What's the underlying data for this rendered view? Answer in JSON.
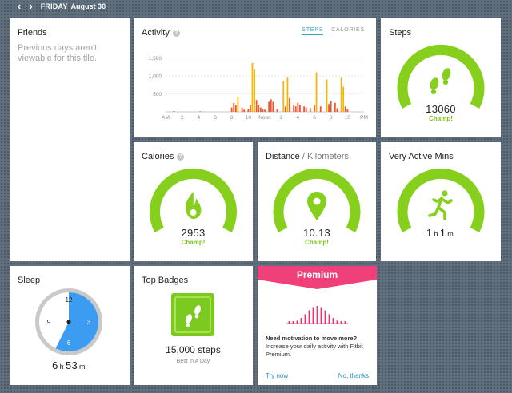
{
  "header": {
    "prev_icon": "chevron-left-icon",
    "next_icon": "chevron-right-icon",
    "day": "FRIDAY",
    "date": "August 30"
  },
  "friends": {
    "title": "Friends",
    "message": "Previous days aren't viewable for this tile."
  },
  "activity": {
    "title": "Activity",
    "tabs": [
      {
        "label": "STEPS",
        "active": true
      },
      {
        "label": "CALORIES",
        "active": false
      }
    ]
  },
  "chart_data": {
    "type": "bar",
    "title": "Activity",
    "y_ticks": [
      "500",
      "1,000",
      "1,500"
    ],
    "ylim": [
      0,
      1800
    ],
    "x_ticks": [
      {
        "label": "AM",
        "hour": 0
      },
      {
        "label": "2",
        "hour": 2
      },
      {
        "label": "4",
        "hour": 4
      },
      {
        "label": "6",
        "hour": 6
      },
      {
        "label": "8",
        "hour": 8
      },
      {
        "label": "10",
        "hour": 10
      },
      {
        "label": "Noon",
        "hour": 12
      },
      {
        "label": "2",
        "hour": 14
      },
      {
        "label": "4",
        "hour": 16
      },
      {
        "label": "6",
        "hour": 18
      },
      {
        "label": "8",
        "hour": 20
      },
      {
        "label": "10",
        "hour": 22
      },
      {
        "label": "PM",
        "hour": 24
      }
    ],
    "grid": true,
    "colors": {
      "high": "#f5b700",
      "low": "#f0542c"
    },
    "bars": [
      {
        "hour": 1.0,
        "value": 20,
        "color": "low"
      },
      {
        "hour": 4.2,
        "value": 15,
        "color": "low"
      },
      {
        "hour": 8.0,
        "value": 120,
        "color": "low"
      },
      {
        "hour": 8.25,
        "value": 250,
        "color": "low"
      },
      {
        "hour": 8.5,
        "value": 180,
        "color": "low"
      },
      {
        "hour": 8.75,
        "value": 420,
        "color": "high"
      },
      {
        "hour": 9.25,
        "value": 120,
        "color": "low"
      },
      {
        "hour": 9.5,
        "value": 60,
        "color": "low"
      },
      {
        "hour": 10.0,
        "value": 90,
        "color": "low"
      },
      {
        "hour": 10.25,
        "value": 180,
        "color": "low"
      },
      {
        "hour": 10.5,
        "value": 1360,
        "color": "high"
      },
      {
        "hour": 10.75,
        "value": 1180,
        "color": "high"
      },
      {
        "hour": 11.0,
        "value": 330,
        "color": "low"
      },
      {
        "hour": 11.25,
        "value": 200,
        "color": "low"
      },
      {
        "hour": 11.5,
        "value": 120,
        "color": "low"
      },
      {
        "hour": 11.75,
        "value": 90,
        "color": "low"
      },
      {
        "hour": 12.0,
        "value": 60,
        "color": "low"
      },
      {
        "hour": 12.5,
        "value": 280,
        "color": "low"
      },
      {
        "hour": 12.75,
        "value": 350,
        "color": "low"
      },
      {
        "hour": 13.0,
        "value": 280,
        "color": "low"
      },
      {
        "hour": 13.5,
        "value": 80,
        "color": "low"
      },
      {
        "hour": 14.25,
        "value": 850,
        "color": "high"
      },
      {
        "hour": 14.5,
        "value": 150,
        "color": "low"
      },
      {
        "hour": 14.75,
        "value": 950,
        "color": "high"
      },
      {
        "hour": 15.0,
        "value": 380,
        "color": "low"
      },
      {
        "hour": 15.5,
        "value": 200,
        "color": "low"
      },
      {
        "hour": 15.75,
        "value": 150,
        "color": "low"
      },
      {
        "hour": 16.0,
        "value": 250,
        "color": "low"
      },
      {
        "hour": 16.25,
        "value": 180,
        "color": "low"
      },
      {
        "hour": 16.75,
        "value": 150,
        "color": "low"
      },
      {
        "hour": 17.0,
        "value": 120,
        "color": "low"
      },
      {
        "hour": 17.5,
        "value": 100,
        "color": "low"
      },
      {
        "hour": 18.0,
        "value": 180,
        "color": "low"
      },
      {
        "hour": 18.25,
        "value": 1100,
        "color": "high"
      },
      {
        "hour": 18.75,
        "value": 150,
        "color": "low"
      },
      {
        "hour": 19.5,
        "value": 900,
        "color": "high"
      },
      {
        "hour": 19.75,
        "value": 220,
        "color": "low"
      },
      {
        "hour": 20.0,
        "value": 300,
        "color": "low"
      },
      {
        "hour": 20.5,
        "value": 250,
        "color": "low"
      },
      {
        "hour": 20.75,
        "value": 100,
        "color": "low"
      },
      {
        "hour": 21.25,
        "value": 950,
        "color": "high"
      },
      {
        "hour": 21.5,
        "value": 700,
        "color": "high"
      },
      {
        "hour": 21.75,
        "value": 150,
        "color": "low"
      },
      {
        "hour": 22.0,
        "value": 80,
        "color": "low"
      }
    ]
  },
  "steps": {
    "title": "Steps",
    "value": "13060",
    "status": "Champ!",
    "icon": "footprints-icon",
    "progress": 1.0
  },
  "calories": {
    "title": "Calories",
    "value": "2953",
    "status": "Champ!",
    "icon": "flame-icon",
    "progress": 1.0
  },
  "distance": {
    "title": "Distance",
    "unit": "Kilometers",
    "separator": " / ",
    "value": "10.13",
    "status": "Champ!",
    "icon": "location-pin-icon",
    "progress": 1.0
  },
  "very_active": {
    "title": "Very Active Mins",
    "hours": "1",
    "h_unit": "h",
    "minutes": "1",
    "m_unit": "m",
    "status": "Champ!",
    "icon": "runner-icon",
    "progress": 1.0
  },
  "sleep": {
    "title": "Sleep",
    "hours": "6",
    "h_unit": "h",
    "minutes": "53",
    "m_unit": "m",
    "clock_labels": [
      "12",
      "3",
      "6",
      "9"
    ],
    "icon": "clock-icon",
    "sleep_start_hour": 0,
    "sleep_end_hour": 6.88
  },
  "badges": {
    "title": "Top Badges",
    "label": "15,000 steps",
    "sub": "Best in A Day",
    "icon": "footprints-badge-icon"
  },
  "premium": {
    "title": "Premium",
    "question": "Need motivation to move more?",
    "body": "Increase your daily activity with Fitbit Premium.",
    "try_label": "Try now",
    "no_label": "No, thanks",
    "colors": {
      "header": "#f0407a",
      "bars": "#e8336c"
    }
  },
  "colors": {
    "ring": "#86cf1d",
    "ring_dark": "#72b614",
    "sleep_blue": "#3b9cf2",
    "accent_blue": "#3aa7c9"
  }
}
